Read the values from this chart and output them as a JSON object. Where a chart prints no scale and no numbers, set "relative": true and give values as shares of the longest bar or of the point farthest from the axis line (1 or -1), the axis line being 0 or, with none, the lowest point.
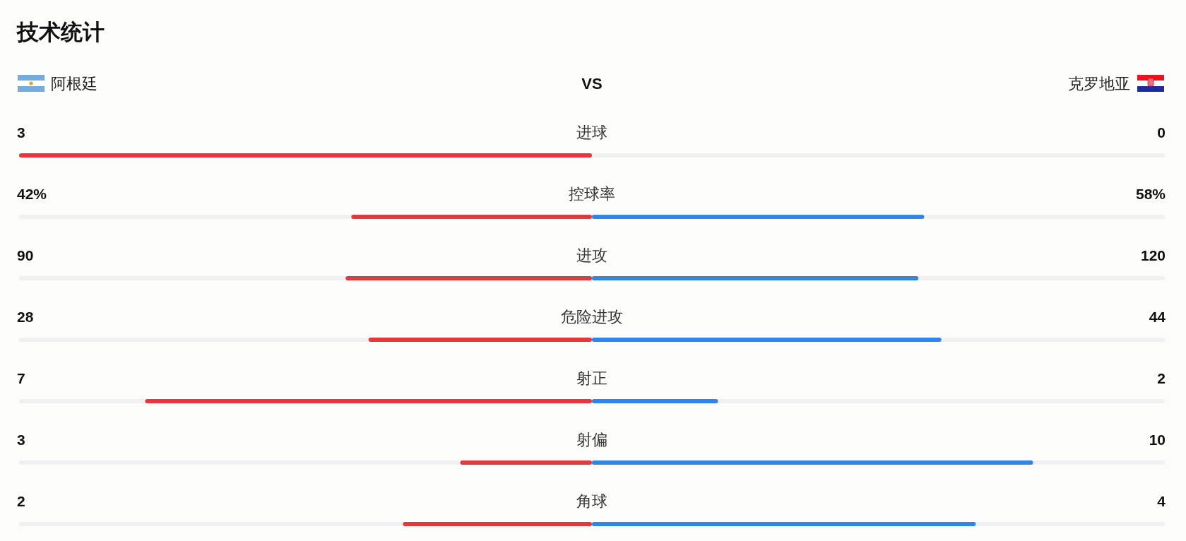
{
  "chart_data": [
    {
      "type": "other",
      "title": "技术统计",
      "annotations": [
        "阿根廷",
        "VS",
        "克罗地亚"
      ]
    },
    {
      "type": "bar",
      "orientation": "horizontal",
      "stacked": true,
      "relative": true,
      "categories": [
        "进球",
        "控球率",
        "进攻",
        "危险进攻",
        "射正",
        "射偏",
        "角球"
      ],
      "bands": [
        {
          "axis": "x",
          "from": -1,
          "to": 1,
          "color": "#f0f0f3"
        }
      ],
      "series": [
        {
          "color": "#e8363d",
          "values": [
            -1,
            -0.42,
            -0.43,
            -0.39,
            -0.78,
            -0.23,
            -0.33
          ]
        },
        {
          "color": "#2f84ee",
          "values": [
            0,
            0.58,
            0.57,
            0.61,
            0.22,
            0.77,
            0.67
          ]
        }
      ],
      "annotations": [
        "3",
        "0",
        "42%",
        "58%",
        "90",
        "120",
        "28",
        "44",
        "7",
        "2",
        "3",
        "10",
        "2",
        "4"
      ]
    }
  ]
}
